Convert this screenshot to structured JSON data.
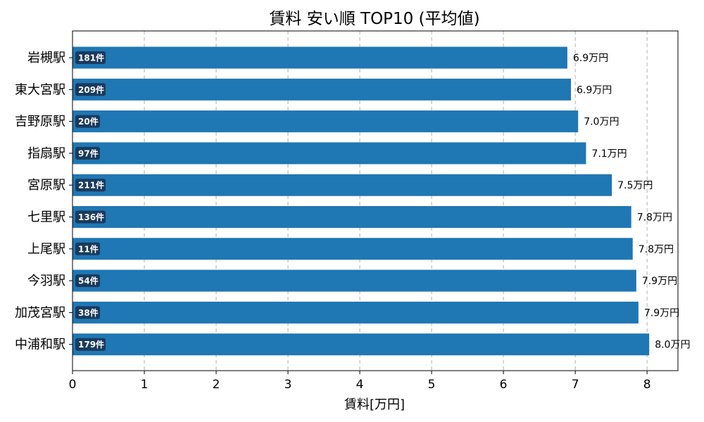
{
  "chart_data": {
    "type": "bar",
    "orientation": "horizontal",
    "title": "賃料 安い順 TOP10 (平均値)",
    "xlabel": "賃料[万円]",
    "ylabel": "",
    "xlim": [
      0,
      8.43
    ],
    "xticks": [
      "0",
      "1",
      "2",
      "3",
      "4",
      "5",
      "6",
      "7",
      "8"
    ],
    "grid": "vertical-dashed",
    "categories": [
      "岩槻駅",
      "東大宮駅",
      "吉野原駅",
      "指扇駅",
      "宮原駅",
      "七里駅",
      "上尾駅",
      "今羽駅",
      "加茂宮駅",
      "中浦和駅"
    ],
    "values": [
      6.89,
      6.94,
      7.04,
      7.15,
      7.51,
      7.78,
      7.8,
      7.85,
      7.88,
      8.03
    ],
    "value_labels": [
      "6.9万円",
      "6.9万円",
      "7.0万円",
      "7.1万円",
      "7.5万円",
      "7.8万円",
      "7.8万円",
      "7.9万円",
      "7.9万円",
      "8.0万円"
    ],
    "count_labels": [
      "181件",
      "209件",
      "20件",
      "97件",
      "211件",
      "136件",
      "11件",
      "54件",
      "38件",
      "179件"
    ],
    "colors": {
      "bar": "#1f77b4",
      "count_badge": "#1a3a5c"
    }
  }
}
